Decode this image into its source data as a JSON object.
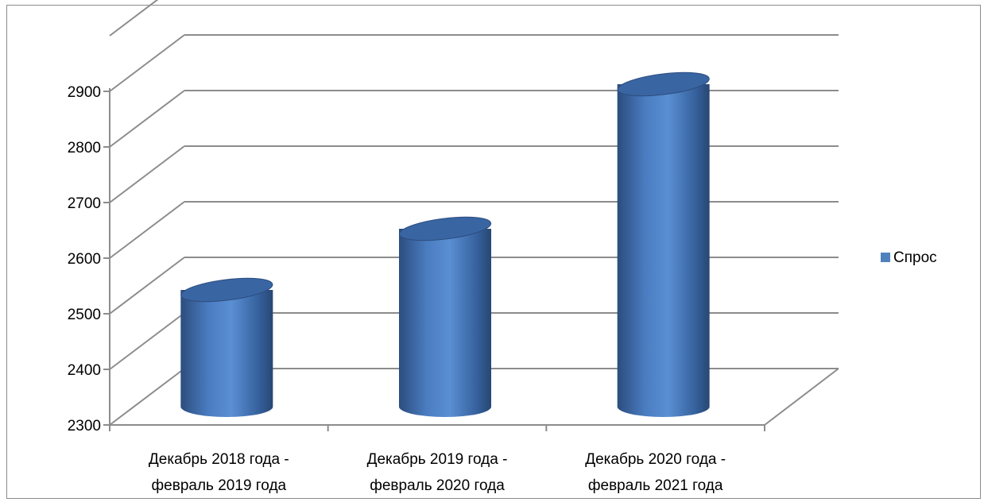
{
  "chart_data": {
    "type": "bar",
    "style": "3d-cylinder",
    "categories": [
      [
        "Декабрь 2018 года -",
        "февраль 2019 года"
      ],
      [
        "Декабрь 2019 года -",
        "февраль 2020 года"
      ],
      [
        "Декабрь 2020 года -",
        "февраль 2021 года"
      ]
    ],
    "series": [
      {
        "name": "Спрос",
        "values": [
          2510,
          2620,
          2880
        ],
        "color": "#4f81bd"
      }
    ],
    "ylim": [
      2300,
      2900
    ],
    "ylim_plot_top": 3000,
    "yticks": [
      "2300",
      "2400",
      "2500",
      "2600",
      "2700",
      "2800",
      "2900"
    ],
    "grid": true,
    "legend": "right",
    "title": "",
    "xlabel": "",
    "ylabel": ""
  }
}
